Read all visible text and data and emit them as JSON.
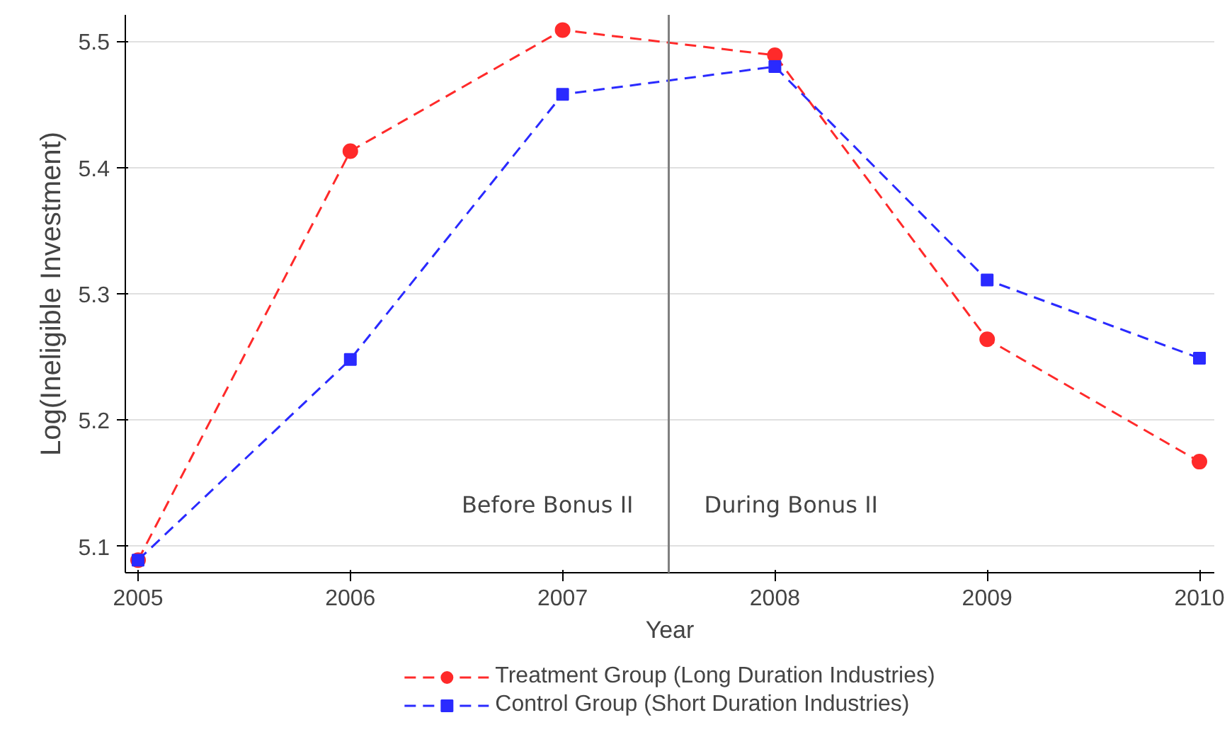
{
  "chart_data": {
    "type": "line",
    "xlabel": "Year",
    "ylabel": "Log(Ineligible Investment)",
    "x": [
      2005,
      2006,
      2007,
      2008,
      2009,
      2010
    ],
    "series": [
      {
        "name": "Treatment Group (Long Duration Industries)",
        "color": "#ff2a2a",
        "marker": "circle",
        "values": [
          5.089,
          5.413,
          5.509,
          5.489,
          5.264,
          5.167
        ]
      },
      {
        "name": "Control Group (Short Duration Industries)",
        "color": "#2a2aff",
        "marker": "square",
        "values": [
          5.089,
          5.248,
          5.458,
          5.48,
          5.311,
          5.249
        ]
      }
    ],
    "line_style": "dashed",
    "xlim": [
      2004.94,
      2010.07
    ],
    "ylim": [
      5.079,
      5.521
    ],
    "xticks": [
      2005,
      2006,
      2007,
      2008,
      2009,
      2010
    ],
    "yticks": [
      5.1,
      5.2,
      5.3,
      5.4,
      5.5
    ],
    "ref_lines": [
      {
        "axis": "x",
        "value": 2007.5,
        "color": "#808080"
      }
    ],
    "annotations": [
      "Before Bonus II",
      "During Bonus II"
    ],
    "grid": "y",
    "legend": "bottom"
  }
}
